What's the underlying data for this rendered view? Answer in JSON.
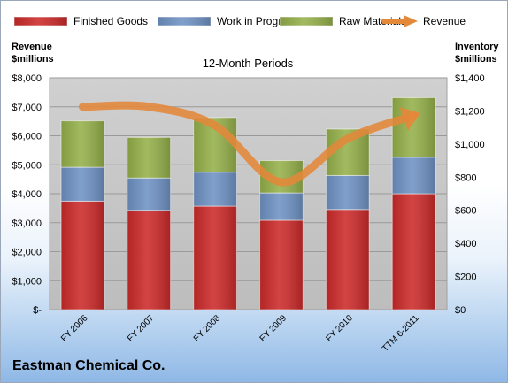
{
  "company": "Eastman Chemical Co.",
  "chart_data": {
    "type": "bar",
    "stacked": true,
    "subtitle": "12-Month Periods",
    "ylabel_left": [
      "Revenue",
      "$millions"
    ],
    "ylabel_right": [
      "Inventory",
      "$millions"
    ],
    "categories": [
      "FY 2006",
      "FY 2007",
      "FY 2008",
      "FY 2009",
      "FY 2010",
      "TTM 6-2011"
    ],
    "series": [
      {
        "name": "Finished Goods",
        "type": "bar",
        "axis": "right",
        "color": "#cc2a2a",
        "values": [
          655,
          600,
          625,
          540,
          605,
          700
        ]
      },
      {
        "name": "Work in Progress",
        "type": "bar",
        "axis": "right",
        "color": "#6f92c4",
        "values": [
          205,
          195,
          205,
          165,
          205,
          220
        ]
      },
      {
        "name": "Raw Materials",
        "type": "bar",
        "axis": "right",
        "color": "#95b04a",
        "values": [
          280,
          245,
          330,
          195,
          280,
          360
        ]
      },
      {
        "name": "Revenue",
        "type": "line",
        "axis": "left",
        "color": "#e4883a",
        "values": [
          7000,
          7000,
          6350,
          4400,
          5900,
          6700
        ]
      }
    ],
    "ylim_left": [
      0,
      8000
    ],
    "ylim_right": [
      0,
      1400
    ],
    "left_ticks": [
      "$-",
      "$1,000",
      "$2,000",
      "$3,000",
      "$4,000",
      "$5,000",
      "$6,000",
      "$7,000",
      "$8,000"
    ],
    "right_ticks": [
      "$0",
      "$200",
      "$400",
      "$600",
      "$800",
      "$1,000",
      "$1,200",
      "$1,400"
    ],
    "legend_position": "top",
    "grid": true
  }
}
